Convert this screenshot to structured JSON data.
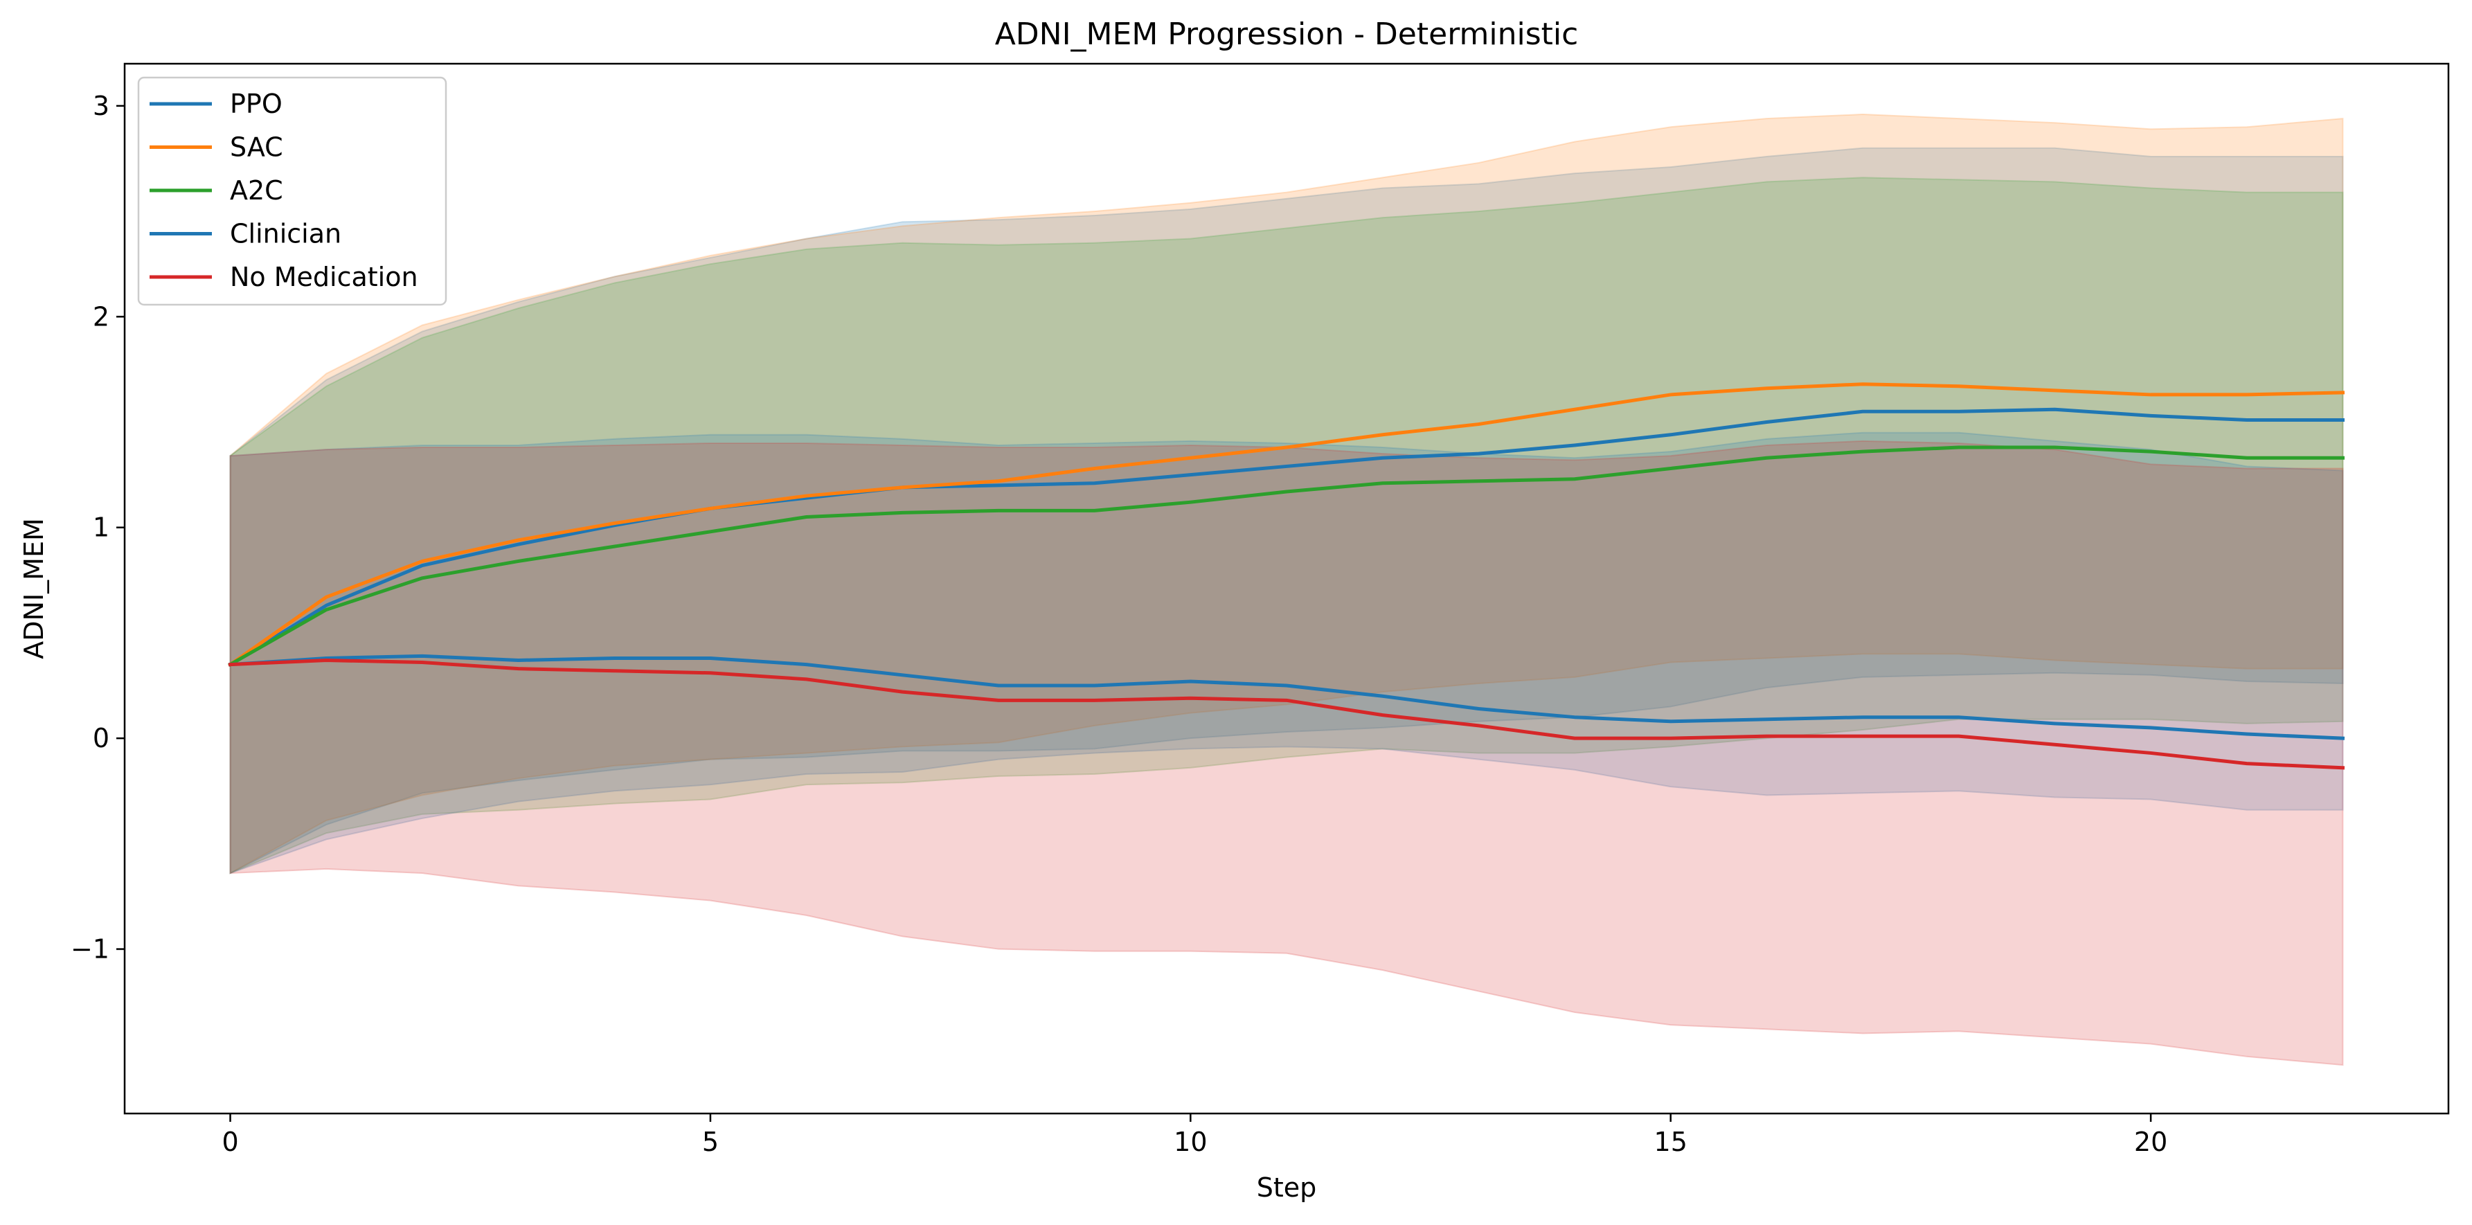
{
  "chart_data": {
    "type": "line",
    "title": "ADNI_MEM Progression - Deterministic",
    "xlabel": "Step",
    "ylabel": "ADNI_MEM",
    "xlim": [
      -1.1,
      23.1
    ],
    "ylim": [
      -1.78,
      3.2
    ],
    "x_ticks": [
      0,
      5,
      10,
      15,
      20
    ],
    "y_ticks": [
      -1,
      0,
      1,
      2,
      3
    ],
    "y_tick_labels": [
      "−1",
      "0",
      "1",
      "2",
      "3"
    ],
    "grid": false,
    "legend_position": "top-left",
    "x": [
      0,
      1,
      2,
      3,
      4,
      5,
      6,
      7,
      8,
      9,
      10,
      11,
      12,
      13,
      14,
      15,
      16,
      17,
      18,
      19,
      20,
      21,
      22
    ],
    "series": [
      {
        "name": "PPO",
        "color": "#1f77b4",
        "values": [
          0.35,
          0.63,
          0.82,
          0.92,
          1.01,
          1.09,
          1.14,
          1.19,
          1.2,
          1.21,
          1.25,
          1.29,
          1.33,
          1.35,
          1.39,
          1.44,
          1.5,
          1.55,
          1.55,
          1.56,
          1.53,
          1.51,
          1.51
        ],
        "upper": [
          1.34,
          1.7,
          1.93,
          2.07,
          2.19,
          2.28,
          2.37,
          2.45,
          2.46,
          2.48,
          2.51,
          2.56,
          2.61,
          2.63,
          2.68,
          2.71,
          2.76,
          2.8,
          2.8,
          2.8,
          2.76,
          2.76,
          2.76
        ],
        "lower": [
          -0.64,
          -0.41,
          -0.26,
          -0.2,
          -0.15,
          -0.1,
          -0.09,
          -0.06,
          -0.06,
          -0.05,
          0.0,
          0.03,
          0.05,
          0.08,
          0.1,
          0.15,
          0.24,
          0.29,
          0.3,
          0.31,
          0.3,
          0.27,
          0.26
        ]
      },
      {
        "name": "SAC",
        "color": "#ff7f0e",
        "values": [
          0.35,
          0.67,
          0.84,
          0.94,
          1.02,
          1.09,
          1.15,
          1.19,
          1.22,
          1.28,
          1.33,
          1.38,
          1.44,
          1.49,
          1.56,
          1.63,
          1.66,
          1.68,
          1.67,
          1.65,
          1.63,
          1.63,
          1.64
        ],
        "upper": [
          1.34,
          1.73,
          1.96,
          2.08,
          2.19,
          2.29,
          2.37,
          2.43,
          2.47,
          2.5,
          2.54,
          2.59,
          2.66,
          2.73,
          2.83,
          2.9,
          2.94,
          2.96,
          2.94,
          2.92,
          2.89,
          2.9,
          2.94
        ],
        "lower": [
          -0.64,
          -0.39,
          -0.27,
          -0.19,
          -0.13,
          -0.1,
          -0.07,
          -0.04,
          -0.02,
          0.06,
          0.12,
          0.16,
          0.22,
          0.26,
          0.29,
          0.36,
          0.38,
          0.4,
          0.4,
          0.37,
          0.35,
          0.33,
          0.33
        ]
      },
      {
        "name": "A2C",
        "color": "#2ca02c",
        "values": [
          0.35,
          0.61,
          0.76,
          0.84,
          0.91,
          0.98,
          1.05,
          1.07,
          1.08,
          1.08,
          1.12,
          1.17,
          1.21,
          1.22,
          1.23,
          1.28,
          1.33,
          1.36,
          1.38,
          1.38,
          1.36,
          1.33,
          1.33
        ],
        "upper": [
          1.34,
          1.67,
          1.9,
          2.04,
          2.16,
          2.25,
          2.32,
          2.35,
          2.34,
          2.35,
          2.37,
          2.42,
          2.47,
          2.5,
          2.54,
          2.59,
          2.64,
          2.66,
          2.65,
          2.64,
          2.61,
          2.59,
          2.59
        ],
        "lower": [
          -0.64,
          -0.45,
          -0.36,
          -0.34,
          -0.31,
          -0.29,
          -0.22,
          -0.21,
          -0.18,
          -0.17,
          -0.14,
          -0.09,
          -0.05,
          -0.07,
          -0.07,
          -0.04,
          0.0,
          0.04,
          0.09,
          0.09,
          0.09,
          0.07,
          0.08
        ]
      },
      {
        "name": "Clinician",
        "color": "#1f77b4",
        "values": [
          0.35,
          0.38,
          0.39,
          0.37,
          0.38,
          0.38,
          0.35,
          0.3,
          0.25,
          0.25,
          0.27,
          0.25,
          0.2,
          0.14,
          0.1,
          0.08,
          0.09,
          0.1,
          0.1,
          0.07,
          0.05,
          0.02,
          0.0
        ],
        "upper": [
          1.34,
          1.37,
          1.39,
          1.39,
          1.42,
          1.44,
          1.44,
          1.42,
          1.39,
          1.4,
          1.41,
          1.4,
          1.38,
          1.35,
          1.33,
          1.36,
          1.42,
          1.45,
          1.45,
          1.41,
          1.37,
          1.29,
          1.27
        ],
        "lower": [
          -0.64,
          -0.48,
          -0.38,
          -0.3,
          -0.25,
          -0.22,
          -0.17,
          -0.16,
          -0.1,
          -0.07,
          -0.05,
          -0.04,
          -0.05,
          -0.1,
          -0.15,
          -0.23,
          -0.27,
          -0.26,
          -0.25,
          -0.28,
          -0.29,
          -0.34,
          -0.34
        ]
      },
      {
        "name": "No Medication",
        "color": "#d62728",
        "values": [
          0.35,
          0.37,
          0.36,
          0.33,
          0.32,
          0.31,
          0.28,
          0.22,
          0.18,
          0.18,
          0.19,
          0.18,
          0.11,
          0.06,
          0.0,
          0.0,
          0.01,
          0.01,
          0.01,
          -0.03,
          -0.07,
          -0.12,
          -0.14
        ],
        "upper": [
          1.34,
          1.37,
          1.38,
          1.38,
          1.39,
          1.4,
          1.4,
          1.39,
          1.38,
          1.38,
          1.39,
          1.38,
          1.35,
          1.33,
          1.32,
          1.34,
          1.39,
          1.41,
          1.4,
          1.37,
          1.3,
          1.28,
          1.28
        ],
        "lower": [
          -0.64,
          -0.62,
          -0.64,
          -0.7,
          -0.73,
          -0.77,
          -0.84,
          -0.94,
          -1.0,
          -1.01,
          -1.01,
          -1.02,
          -1.1,
          -1.2,
          -1.3,
          -1.36,
          -1.38,
          -1.4,
          -1.39,
          -1.42,
          -1.45,
          -1.51,
          -1.55
        ]
      }
    ]
  }
}
